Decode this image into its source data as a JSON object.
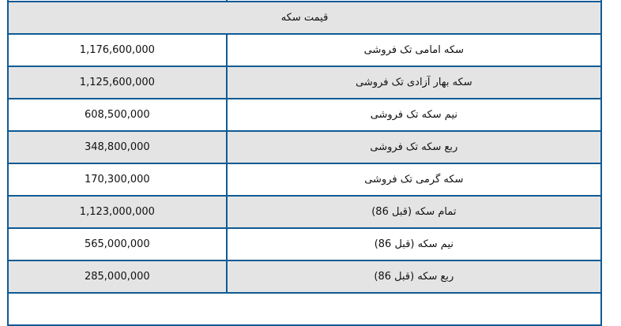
{
  "table": {
    "title": "قیمت سکه",
    "rows": [
      {
        "name": "سکه امامی تک فروشی",
        "price": "1,176,600,000"
      },
      {
        "name": "سکه بهار آزادی تک فروشی",
        "price": "1,125,600,000"
      },
      {
        "name": "نیم سکه تک فروشی",
        "price": "608,500,000"
      },
      {
        "name": "ربع سکه تک فروشی",
        "price": "348,800,000"
      },
      {
        "name": "سکه گرمی تک فروشی",
        "price": "170,300,000"
      },
      {
        "name": "تمام سکه (قبل 86)",
        "price": "1,123,000,000"
      },
      {
        "name": "نیم سکه (قبل 86)",
        "price": "565,000,000"
      },
      {
        "name": "ربع سکه (قبل 86)",
        "price": "285,000,000"
      }
    ]
  },
  "colors": {
    "border": "#0f5b95",
    "row_alt": "#e4e4e4"
  }
}
